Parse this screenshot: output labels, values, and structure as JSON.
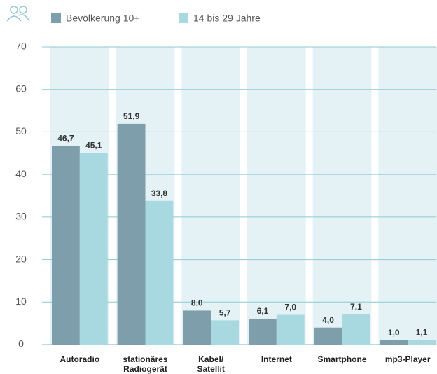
{
  "chart_data": {
    "type": "bar",
    "categories": [
      "Autoradio",
      "stationäres Radiogerät",
      "Kabel/ Satellit",
      "Internet",
      "Smartphone",
      "mp3-Player"
    ],
    "series": [
      {
        "name": "Bevölkerung 10+",
        "color": "#7f9eab",
        "values": [
          46.7,
          51.9,
          8.0,
          6.1,
          4.0,
          1.0
        ],
        "value_labels": [
          "46,7",
          "51,9",
          "8,0",
          "6,1",
          "4,0",
          "1,0"
        ]
      },
      {
        "name": "14 bis 29 Jahre",
        "color": "#a8d8e0",
        "values": [
          45.1,
          33.8,
          5.7,
          7.0,
          7.1,
          1.1
        ],
        "value_labels": [
          "45,1",
          "33,8",
          "5,7",
          "7,0",
          "7,1",
          "1,1"
        ]
      }
    ],
    "ylim": [
      0,
      70
    ],
    "yticks": [
      0,
      10,
      20,
      30,
      40,
      50,
      60,
      70
    ],
    "grid": true
  }
}
